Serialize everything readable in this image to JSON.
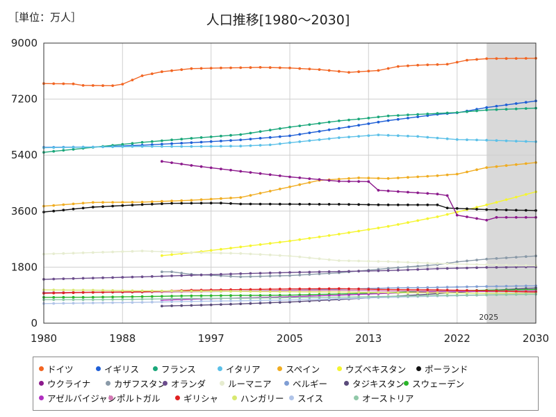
{
  "chart_data": {
    "type": "line",
    "title": "人口推移[1980～2030]",
    "unit_label": "［単位：万人］",
    "xlabel": "",
    "ylabel": "",
    "xlim": [
      1980,
      2030
    ],
    "ylim": [
      0,
      9000
    ],
    "x_ticks": [
      1980,
      1988,
      1997,
      2005,
      2013,
      2022,
      2030
    ],
    "y_ticks": [
      0,
      1800,
      3600,
      5400,
      7200,
      9000
    ],
    "forecast_start": 2025,
    "forecast_label": "2025",
    "series": [
      {
        "name": "ドイツ",
        "color": "#f26522",
        "points": [
          [
            1980,
            7700
          ],
          [
            1983,
            7690
          ],
          [
            1984,
            7640
          ],
          [
            1987,
            7630
          ],
          [
            1988,
            7680
          ],
          [
            1990,
            7950
          ],
          [
            1992,
            8080
          ],
          [
            1995,
            8180
          ],
          [
            1998,
            8200
          ],
          [
            2002,
            8220
          ],
          [
            2005,
            8200
          ],
          [
            2008,
            8150
          ],
          [
            2011,
            8060
          ],
          [
            2014,
            8120
          ],
          [
            2016,
            8250
          ],
          [
            2018,
            8290
          ],
          [
            2021,
            8320
          ],
          [
            2023,
            8450
          ],
          [
            2025,
            8500
          ],
          [
            2030,
            8510
          ]
        ]
      },
      {
        "name": "イギリス",
        "color": "#1f5fd6",
        "points": [
          [
            1980,
            5650
          ],
          [
            1985,
            5660
          ],
          [
            1990,
            5720
          ],
          [
            1995,
            5800
          ],
          [
            2000,
            5890
          ],
          [
            2005,
            6020
          ],
          [
            2010,
            6260
          ],
          [
            2015,
            6510
          ],
          [
            2020,
            6710
          ],
          [
            2022,
            6760
          ],
          [
            2025,
            6930
          ],
          [
            2030,
            7140
          ]
        ]
      },
      {
        "name": "フランス",
        "color": "#1aa77a",
        "points": [
          [
            1980,
            5490
          ],
          [
            1985,
            5650
          ],
          [
            1990,
            5810
          ],
          [
            1995,
            5940
          ],
          [
            2000,
            6060
          ],
          [
            2005,
            6300
          ],
          [
            2010,
            6500
          ],
          [
            2013,
            6590
          ],
          [
            2015,
            6660
          ],
          [
            2020,
            6740
          ],
          [
            2022,
            6770
          ],
          [
            2025,
            6850
          ],
          [
            2030,
            6910
          ]
        ]
      },
      {
        "name": "イタリア",
        "color": "#5bc0e8",
        "points": [
          [
            1980,
            5640
          ],
          [
            1985,
            5660
          ],
          [
            1990,
            5680
          ],
          [
            1995,
            5680
          ],
          [
            2000,
            5690
          ],
          [
            2003,
            5730
          ],
          [
            2005,
            5800
          ],
          [
            2010,
            5960
          ],
          [
            2014,
            6050
          ],
          [
            2018,
            6000
          ],
          [
            2022,
            5900
          ],
          [
            2025,
            5880
          ],
          [
            2030,
            5830
          ]
        ]
      },
      {
        "name": "スペイン",
        "color": "#f0ad22",
        "points": [
          [
            1980,
            3760
          ],
          [
            1985,
            3880
          ],
          [
            1990,
            3890
          ],
          [
            1995,
            3950
          ],
          [
            2000,
            4040
          ],
          [
            2005,
            4380
          ],
          [
            2008,
            4590
          ],
          [
            2012,
            4670
          ],
          [
            2015,
            4650
          ],
          [
            2020,
            4740
          ],
          [
            2022,
            4790
          ],
          [
            2025,
            5000
          ],
          [
            2030,
            5160
          ]
        ]
      },
      {
        "name": "ウズベキスタン",
        "color": "#f5f530",
        "points": [
          [
            1992,
            2170
          ],
          [
            1996,
            2300
          ],
          [
            2000,
            2450
          ],
          [
            2005,
            2640
          ],
          [
            2010,
            2860
          ],
          [
            2015,
            3110
          ],
          [
            2020,
            3420
          ],
          [
            2025,
            3800
          ],
          [
            2030,
            4220
          ]
        ]
      },
      {
        "name": "ポーランド",
        "color": "#111111",
        "points": [
          [
            1980,
            3570
          ],
          [
            1985,
            3730
          ],
          [
            1990,
            3810
          ],
          [
            1993,
            3850
          ],
          [
            1998,
            3860
          ],
          [
            2000,
            3830
          ],
          [
            2010,
            3820
          ],
          [
            2015,
            3800
          ],
          [
            2020,
            3800
          ],
          [
            2021,
            3700
          ],
          [
            2025,
            3650
          ],
          [
            2030,
            3620
          ]
        ]
      },
      {
        "name": "ウクライナ",
        "color": "#8c1a8c",
        "points": [
          [
            1992,
            5200
          ],
          [
            1995,
            5070
          ],
          [
            2000,
            4880
          ],
          [
            2005,
            4700
          ],
          [
            2010,
            4560
          ],
          [
            2013,
            4550
          ],
          [
            2014,
            4270
          ],
          [
            2020,
            4150
          ],
          [
            2021,
            4100
          ],
          [
            2022,
            3470
          ],
          [
            2025,
            3310
          ],
          [
            2026,
            3400
          ],
          [
            2030,
            3400
          ]
        ]
      },
      {
        "name": "カザフスタン",
        "color": "#8a9aa8",
        "points": [
          [
            1992,
            1650
          ],
          [
            1993,
            1650
          ],
          [
            1995,
            1570
          ],
          [
            2000,
            1490
          ],
          [
            2005,
            1530
          ],
          [
            2010,
            1620
          ],
          [
            2015,
            1760
          ],
          [
            2020,
            1880
          ],
          [
            2022,
            1970
          ],
          [
            2025,
            2060
          ],
          [
            2030,
            2160
          ]
        ]
      },
      {
        "name": "オランダ",
        "color": "#6b4c8c",
        "points": [
          [
            1980,
            1410
          ],
          [
            1985,
            1450
          ],
          [
            1990,
            1490
          ],
          [
            1995,
            1540
          ],
          [
            2000,
            1590
          ],
          [
            2005,
            1630
          ],
          [
            2010,
            1660
          ],
          [
            2015,
            1690
          ],
          [
            2020,
            1750
          ],
          [
            2025,
            1790
          ],
          [
            2030,
            1810
          ]
        ]
      },
      {
        "name": "ルーマニア",
        "color": "#e6ecd0",
        "points": [
          [
            1980,
            2220
          ],
          [
            1985,
            2270
          ],
          [
            1990,
            2320
          ],
          [
            1995,
            2270
          ],
          [
            2000,
            2240
          ],
          [
            2005,
            2160
          ],
          [
            2010,
            2010
          ],
          [
            2015,
            1980
          ],
          [
            2020,
            1920
          ],
          [
            2022,
            1900
          ],
          [
            2025,
            1880
          ],
          [
            2030,
            1850
          ]
        ]
      },
      {
        "name": "ベルギー",
        "color": "#7f9ed4",
        "points": [
          [
            1980,
            986
          ],
          [
            1990,
            997
          ],
          [
            2000,
            1025
          ],
          [
            2010,
            1090
          ],
          [
            2015,
            1130
          ],
          [
            2020,
            1150
          ],
          [
            2025,
            1180
          ],
          [
            2030,
            1200
          ]
        ]
      },
      {
        "name": "タジキスタン",
        "color": "#5a4a7a",
        "points": [
          [
            1992,
            550
          ],
          [
            1996,
            580
          ],
          [
            2000,
            620
          ],
          [
            2005,
            680
          ],
          [
            2010,
            760
          ],
          [
            2015,
            850
          ],
          [
            2020,
            950
          ],
          [
            2025,
            1050
          ],
          [
            2030,
            1130
          ]
        ]
      },
      {
        "name": "スウェーデン",
        "color": "#2ab52a",
        "points": [
          [
            1980,
            830
          ],
          [
            1985,
            835
          ],
          [
            1990,
            855
          ],
          [
            1995,
            880
          ],
          [
            2000,
            890
          ],
          [
            2005,
            900
          ],
          [
            2010,
            940
          ],
          [
            2015,
            980
          ],
          [
            2020,
            1035
          ],
          [
            2025,
            1060
          ],
          [
            2030,
            1080
          ]
        ]
      },
      {
        "name": "アゼルバイジャン",
        "color": "#b030c0",
        "points": [
          [
            1992,
            740
          ],
          [
            1996,
            780
          ],
          [
            2000,
            810
          ],
          [
            2005,
            850
          ],
          [
            2010,
            900
          ],
          [
            2015,
            960
          ],
          [
            2020,
            1010
          ],
          [
            2025,
            1020
          ],
          [
            2030,
            1040
          ]
        ]
      },
      {
        "name": "ポルトガル",
        "color": "#d47ab5",
        "points": [
          [
            1980,
            980
          ],
          [
            1985,
            1000
          ],
          [
            1990,
            995
          ],
          [
            1995,
            1010
          ],
          [
            2000,
            1030
          ],
          [
            2005,
            1050
          ],
          [
            2010,
            1057
          ],
          [
            2015,
            1035
          ],
          [
            2020,
            1030
          ],
          [
            2025,
            1040
          ],
          [
            2030,
            1030
          ]
        ]
      },
      {
        "name": "ギリシャ",
        "color": "#e02020",
        "points": [
          [
            1980,
            960
          ],
          [
            1985,
            990
          ],
          [
            1990,
            1010
          ],
          [
            1995,
            1060
          ],
          [
            2000,
            1080
          ],
          [
            2005,
            1100
          ],
          [
            2010,
            1110
          ],
          [
            2015,
            1080
          ],
          [
            2020,
            1070
          ],
          [
            2025,
            1040
          ],
          [
            2030,
            1000
          ]
        ]
      },
      {
        "name": "ハンガリー",
        "color": "#d8e870",
        "points": [
          [
            1980,
            1070
          ],
          [
            1985,
            1060
          ],
          [
            1990,
            1040
          ],
          [
            1995,
            1030
          ],
          [
            2000,
            1020
          ],
          [
            2005,
            1010
          ],
          [
            2010,
            1000
          ],
          [
            2015,
            980
          ],
          [
            2020,
            975
          ],
          [
            2025,
            960
          ],
          [
            2030,
            950
          ]
        ]
      },
      {
        "name": "スイス",
        "color": "#b0c4e8",
        "points": [
          [
            1980,
            630
          ],
          [
            1985,
            650
          ],
          [
            1990,
            670
          ],
          [
            1995,
            700
          ],
          [
            2000,
            720
          ],
          [
            2005,
            745
          ],
          [
            2010,
            785
          ],
          [
            2015,
            830
          ],
          [
            2020,
            870
          ],
          [
            2025,
            900
          ],
          [
            2030,
            930
          ]
        ]
      },
      {
        "name": "オーストリア",
        "color": "#90c8a8",
        "points": [
          [
            1980,
            755
          ],
          [
            1985,
            755
          ],
          [
            1990,
            770
          ],
          [
            1995,
            795
          ],
          [
            2000,
            800
          ],
          [
            2005,
            820
          ],
          [
            2010,
            835
          ],
          [
            2015,
            860
          ],
          [
            2020,
            890
          ],
          [
            2025,
            910
          ],
          [
            2030,
            930
          ]
        ]
      }
    ]
  }
}
